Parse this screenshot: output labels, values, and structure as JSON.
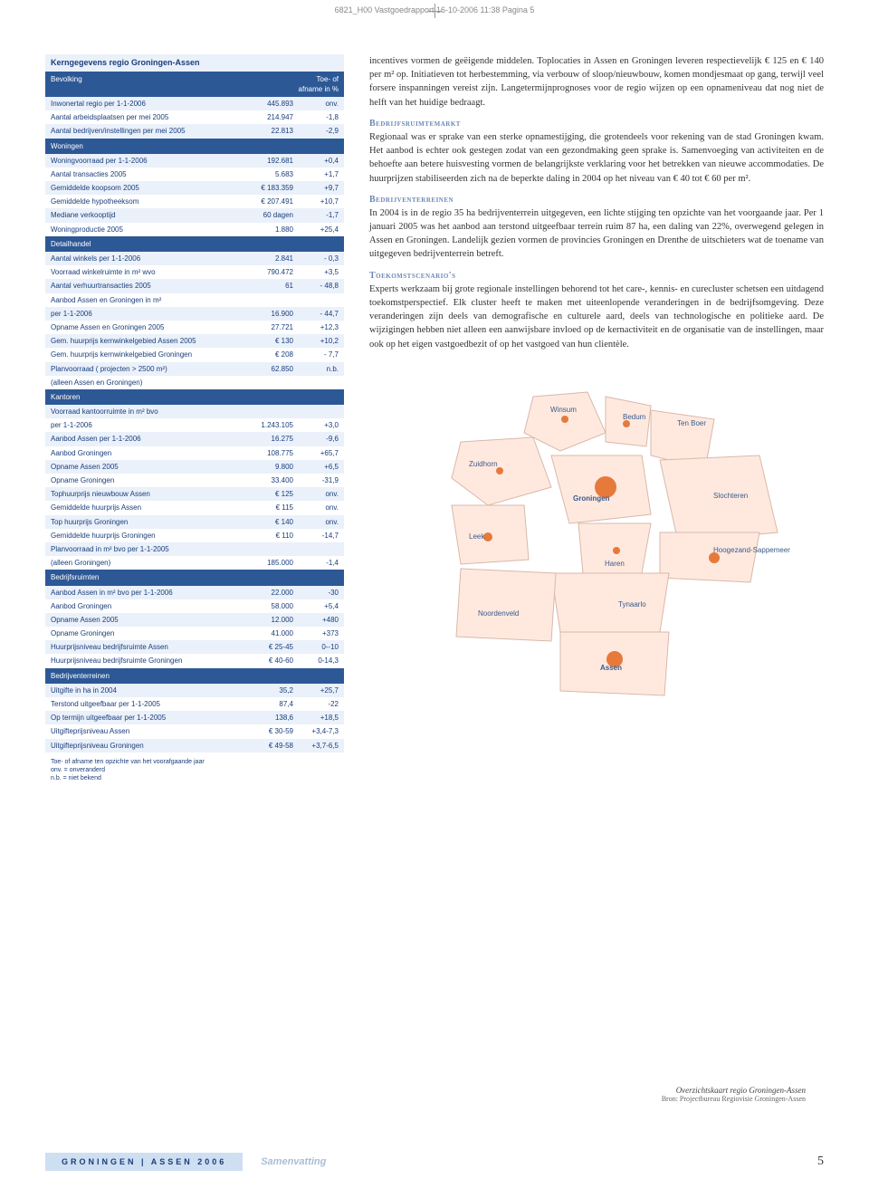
{
  "cropmark": "6821_H00 Vastgoedrapport  16-10-2006  11:38  Pagina 5",
  "table": {
    "title": "Kerngegevens regio Groningen-Assen",
    "header": {
      "c1": "Bevolking",
      "c2": "",
      "c3": "Toe- of afname in %"
    },
    "sections": [
      {
        "rows": [
          {
            "c1": "Inwonertal regio per 1-1-2006",
            "c2": "445.893",
            "c3": "onv."
          },
          {
            "c1": "Aantal arbeidsplaatsen per mei 2005",
            "c2": "214.947",
            "c3": "-1,8"
          },
          {
            "c1": "Aantal bedrijven/instellingen per mei 2005",
            "c2": "22.813",
            "c3": "-2,9"
          }
        ]
      },
      {
        "name": "Woningen",
        "rows": [
          {
            "c1": "Woningvoorraad per 1-1-2006",
            "c2": "192.681",
            "c3": "+0,4"
          },
          {
            "c1": "Aantal transacties 2005",
            "c2": "5.683",
            "c3": "+1,7"
          },
          {
            "c1": "Gemiddelde koopsom 2005",
            "c2": "€ 183.359",
            "c3": "+9,7"
          },
          {
            "c1": "Gemiddelde hypotheeksom",
            "c2": "€ 207.491",
            "c3": "+10,7"
          },
          {
            "c1": "Mediane verkooptijd",
            "c2": "60 dagen",
            "c3": "-1,7"
          },
          {
            "c1": "Woningproductie 2005",
            "c2": "1.880",
            "c3": "+25,4"
          }
        ]
      },
      {
        "name": "Detailhandel",
        "rows": [
          {
            "c1": "Aantal winkels per 1-1-2006",
            "c2": "2.841",
            "c3": "- 0,3"
          },
          {
            "c1": "Voorraad winkelruimte in m² wvo",
            "c2": "790.472",
            "c3": "+3,5"
          },
          {
            "c1": "Aantal verhuurtransacties 2005",
            "c2": "61",
            "c3": "- 48,8"
          },
          {
            "c1": "Aanbod Assen en Groningen in m²",
            "c2": "",
            "c3": ""
          },
          {
            "c1": "per 1-1-2006",
            "c2": "16.900",
            "c3": "- 44,7"
          },
          {
            "c1": "Opname Assen en Groningen 2005",
            "c2": "27.721",
            "c3": "+12,3"
          },
          {
            "c1": "Gem. huurprijs kernwinkelgebied Assen 2005",
            "c2": "€ 130",
            "c3": "+10,2"
          },
          {
            "c1": "Gem. huurprijs kernwinkelgebied Groningen",
            "c2": "€ 208",
            "c3": "- 7,7"
          },
          {
            "c1": "Planvoorraad ( projecten > 2500 m²)",
            "c2": "62.850",
            "c3": "n.b."
          },
          {
            "c1": "(alleen Assen en Groningen)",
            "c2": "",
            "c3": ""
          }
        ]
      },
      {
        "name": "Kantoren",
        "rows": [
          {
            "c1": "Voorraad kantoorruimte in m² bvo",
            "c2": "",
            "c3": ""
          },
          {
            "c1": "per 1-1-2006",
            "c2": "1.243.105",
            "c3": "+3,0"
          },
          {
            "c1": "Aanbod Assen per 1-1-2006",
            "c2": "16.275",
            "c3": "-9,6"
          },
          {
            "c1": "Aanbod Groningen",
            "c2": "108.775",
            "c3": "+65,7"
          },
          {
            "c1": "Opname Assen 2005",
            "c2": "9.800",
            "c3": "+6,5"
          },
          {
            "c1": "Opname Groningen",
            "c2": "33.400",
            "c3": "-31,9"
          },
          {
            "c1": "Tophuurprijs nieuwbouw Assen",
            "c2": "€ 125",
            "c3": "onv."
          },
          {
            "c1": "Gemiddelde huurprijs Assen",
            "c2": "€ 115",
            "c3": "onv."
          },
          {
            "c1": "Top huurprijs Groningen",
            "c2": "€ 140",
            "c3": "onv."
          },
          {
            "c1": "Gemiddelde huurprijs Groningen",
            "c2": "€ 110",
            "c3": "-14,7"
          },
          {
            "c1": "Planvoorraad in m² bvo per 1-1-2005",
            "c2": "",
            "c3": ""
          },
          {
            "c1": "(alleen Groningen)",
            "c2": "185.000",
            "c3": "-1,4"
          }
        ]
      },
      {
        "name": "Bedrijfsruimten",
        "rows": [
          {
            "c1": "Aanbod Assen in m² bvo per 1-1-2006",
            "c2": "22.000",
            "c3": "-30"
          },
          {
            "c1": "Aanbod Groningen",
            "c2": "58.000",
            "c3": "+5,4"
          },
          {
            "c1": "Opname Assen 2005",
            "c2": "12.000",
            "c3": "+480"
          },
          {
            "c1": "Opname Groningen",
            "c2": "41.000",
            "c3": "+373"
          },
          {
            "c1": "Huurprijsniveau bedrijfsruimte Assen",
            "c2": "€ 25-45",
            "c3": "0--10"
          },
          {
            "c1": "Huurprijsniveau bedrijfsruimte Groningen",
            "c2": "€ 40-60",
            "c3": "0-14,3"
          }
        ]
      },
      {
        "name": "Bedrijventerreinen",
        "rows": [
          {
            "c1": "Uitgifte in ha in 2004",
            "c2": "35,2",
            "c3": "+25,7"
          },
          {
            "c1": "Terstond uitgeefbaar per 1-1-2005",
            "c2": "87,4",
            "c3": "-22"
          },
          {
            "c1": "Op termijn uitgeefbaar per 1-1-2005",
            "c2": "138,6",
            "c3": "+18,5"
          },
          {
            "c1": "Uitgifteprijsniveau Assen",
            "c2": "€ 30-59",
            "c3": "+3,4-7,3"
          },
          {
            "c1": "Uitgifteprijsniveau Groningen",
            "c2": "€ 49-58",
            "c3": "+3,7-6,5"
          }
        ]
      }
    ],
    "footnote1": "Toe- of afname ten opzichte van het voorafgaande jaar",
    "footnote2": "onv. = onveranderd",
    "footnote3": "n.b. = niet bekend"
  },
  "text": {
    "p1": "incentives vormen de geëigende middelen. Toplocaties in Assen en Groningen leveren respectievelijk € 125 en € 140 per m² op. Initiatieven tot herbestemming, via verbouw of sloop/nieuwbouw, komen mondjesmaat op gang, terwijl veel forsere inspanningen vereist zijn. Langetermijnprognoses voor de regio wijzen op een opnameniveau dat nog niet de helft van het huidige bedraagt.",
    "h2": "Bedrijfsruimtemarkt",
    "p2": "Regionaal was er sprake van een sterke opnamestijging, die grotendeels voor rekening van de stad Groningen kwam. Het aanbod is echter ook gestegen zodat van een gezondmaking geen sprake is. Samenvoeging van activiteiten en de behoefte aan betere huisvesting vormen de belangrijkste verklaring voor het betrekken van nieuwe accommodaties. De huurprijzen stabiliseerden zich na de beperkte daling in 2004 op het niveau van € 40 tot € 60 per m².",
    "h3": "Bedrijventerreinen",
    "p3": "In 2004 is in de regio 35 ha bedrijventerrein uitgegeven, een lichte stijging ten opzichte van het voorgaande jaar. Per 1 januari 2005 was het aanbod aan terstond uitgeefbaar terrein ruim 87 ha, een daling van 22%, overwegend gelegen in Assen en Groningen. Landelijk gezien vormen de provincies Groningen en Drenthe de uitschieters wat de toename van uitgegeven bedrijventerrein betreft.",
    "h4": "Toekomstscenario's",
    "p4": "Experts werkzaam bij grote regionale instellingen behorend tot het care-, kennis- en curecluster schetsen een uitdagend toekomstperspectief. Elk cluster heeft te maken met uiteenlopende veranderingen in de bedrijfsomgeving. Deze veranderingen zijn deels van demografische en culturele aard, deels van technologische en politieke aard. De wijzigingen hebben niet alleen een aanwijsbare invloed op de kernactiviteit en de organisatie van de instellingen, maar ook op het eigen vastgoedbezit of op het vastgoed van hun clientèle."
  },
  "map": {
    "caption": "Overzichtskaart regio Groningen-Assen",
    "source": "Bron: Projectbureau Regiovisie Groningen-Assen",
    "labels": [
      "Winsum",
      "Bedum",
      "Ten Boer",
      "Zuidhorn",
      "Groningen",
      "Slochteren",
      "Leek",
      "Haren",
      "Hoogezand-Sappemeer",
      "Tynaarlo",
      "Noordenveld",
      "Assen"
    ],
    "region_fill": "#ffe9df",
    "region_stroke": "#d9b8a8",
    "city_fill": "#e67a3b",
    "label_color": "#3a5a8a"
  },
  "footer": {
    "left": "GRONINGEN | ASSEN 2006",
    "mid": "Samenvatting",
    "page": "5"
  }
}
